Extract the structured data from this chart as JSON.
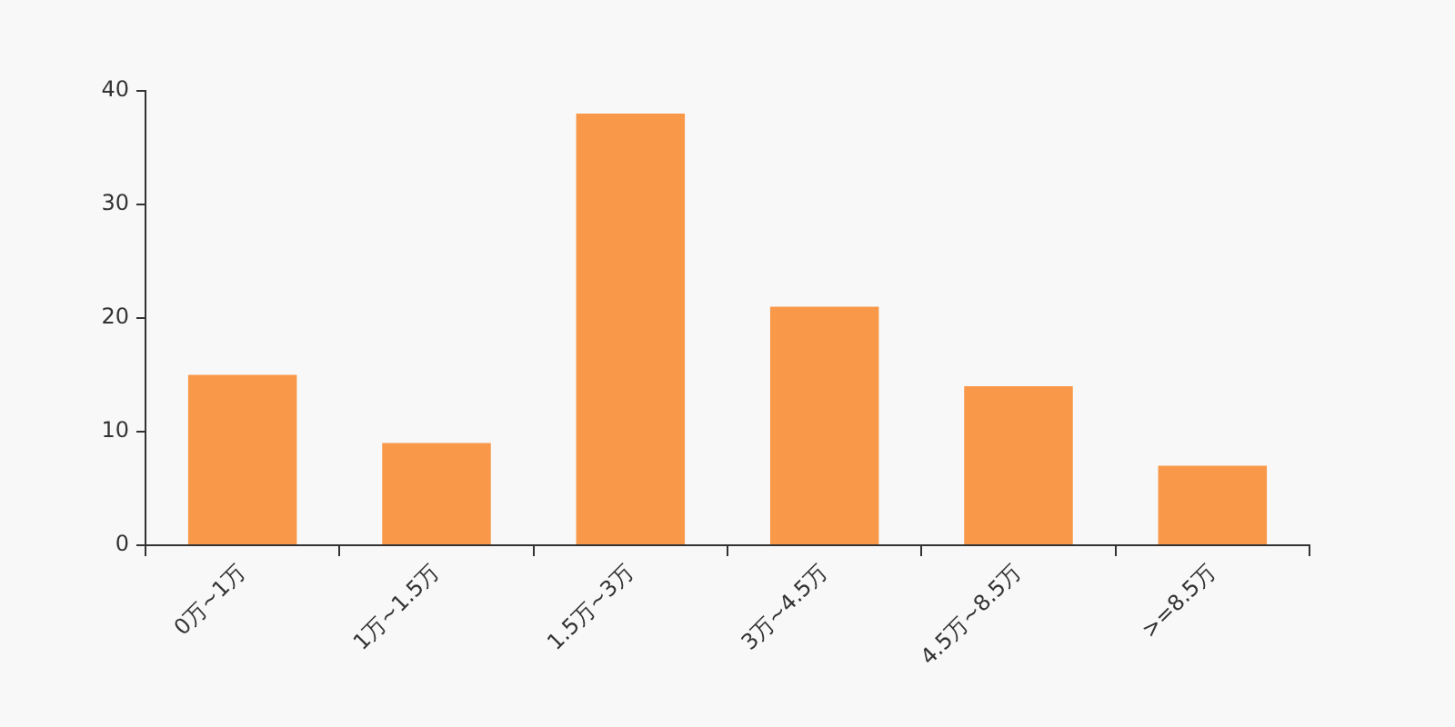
{
  "chart_data": {
    "type": "bar",
    "categories": [
      "0万~1万",
      "1万~1.5万",
      "1.5万~3万",
      "3万~4.5万",
      "4.5万~8.5万",
      ">=8.5万"
    ],
    "values": [
      15,
      9,
      38,
      21,
      14,
      7
    ],
    "color": "#f89848",
    "ylim": [
      0,
      40
    ],
    "yticks": [
      0,
      10,
      20,
      30,
      40
    ]
  }
}
